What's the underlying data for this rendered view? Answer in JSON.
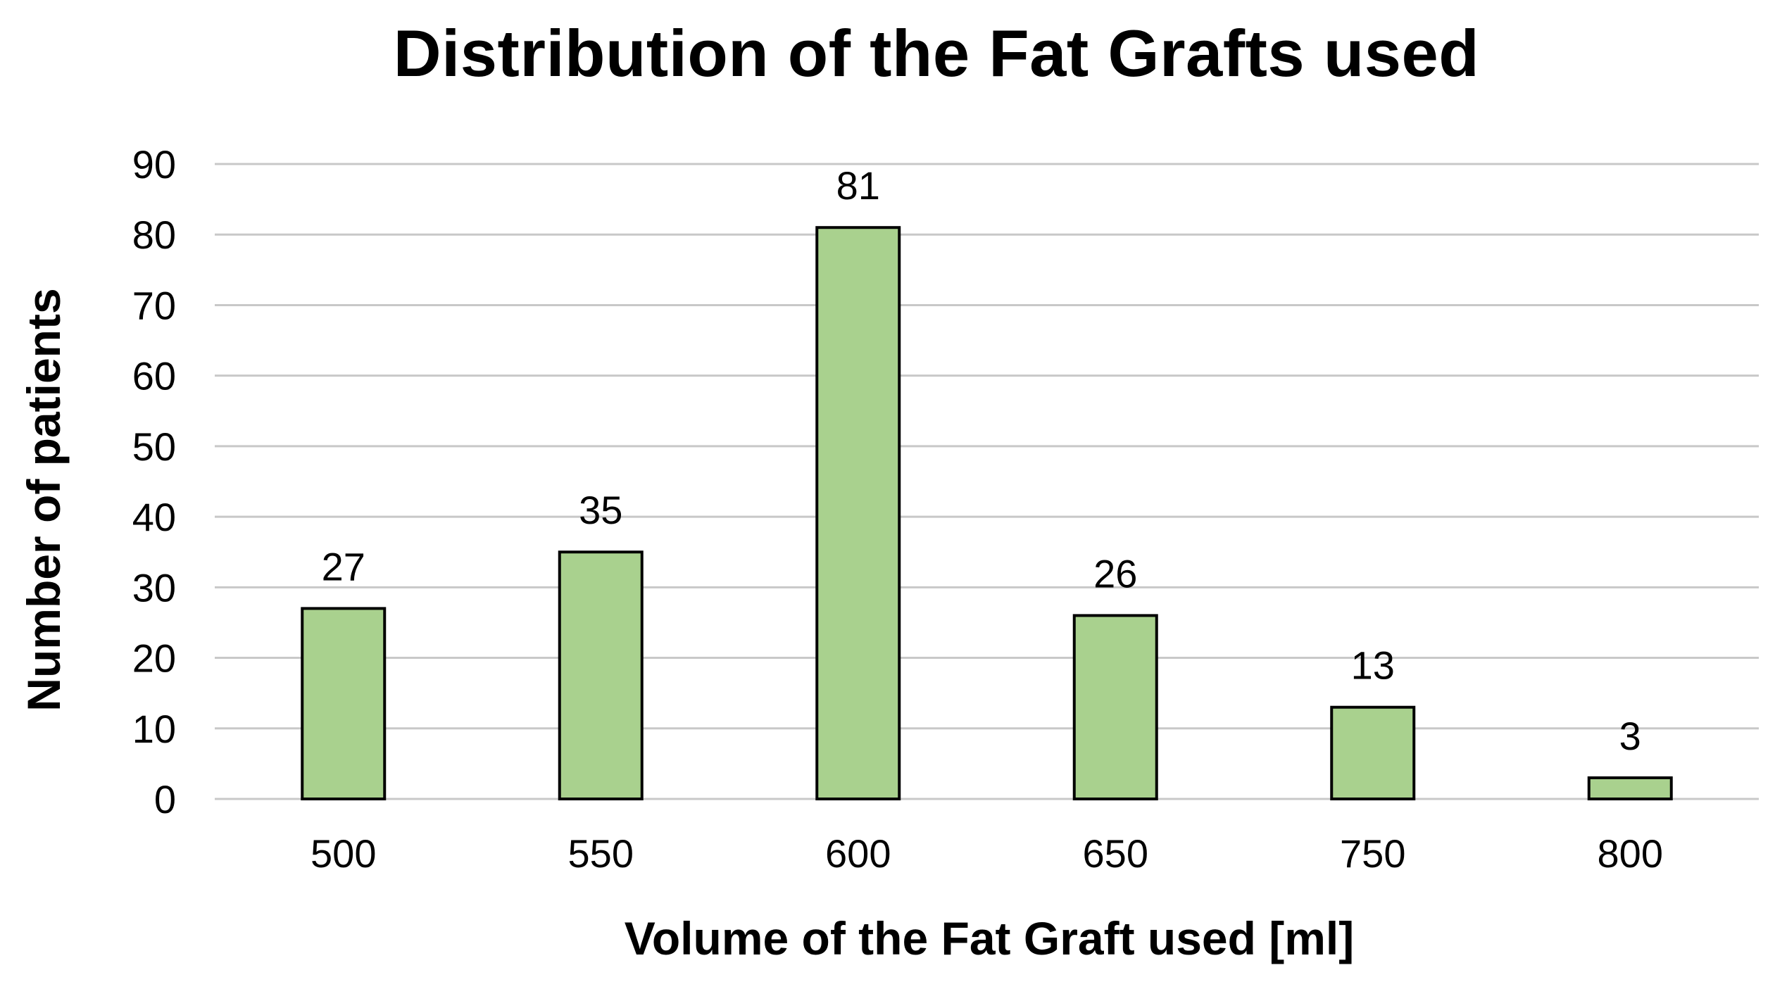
{
  "chart_data": {
    "type": "bar",
    "title": "Distribution of the Fat Grafts used",
    "xlabel": "Volume of the Fat Graft used [ml]",
    "ylabel": "Number of patients",
    "categories": [
      "500",
      "550",
      "600",
      "650",
      "750",
      "800"
    ],
    "values": [
      27,
      35,
      81,
      26,
      13,
      3
    ],
    "data_labels": [
      "27",
      "35",
      "81",
      "26",
      "13",
      "3"
    ],
    "ylim": [
      0,
      90
    ],
    "yticks": [
      "0",
      "10",
      "20",
      "30",
      "40",
      "50",
      "60",
      "70",
      "80",
      "90"
    ],
    "grid": true,
    "legend": "none",
    "colors": {
      "bar_fill": "#a9d18e",
      "bar_stroke": "#000000",
      "grid": "#c8c8c8"
    }
  }
}
